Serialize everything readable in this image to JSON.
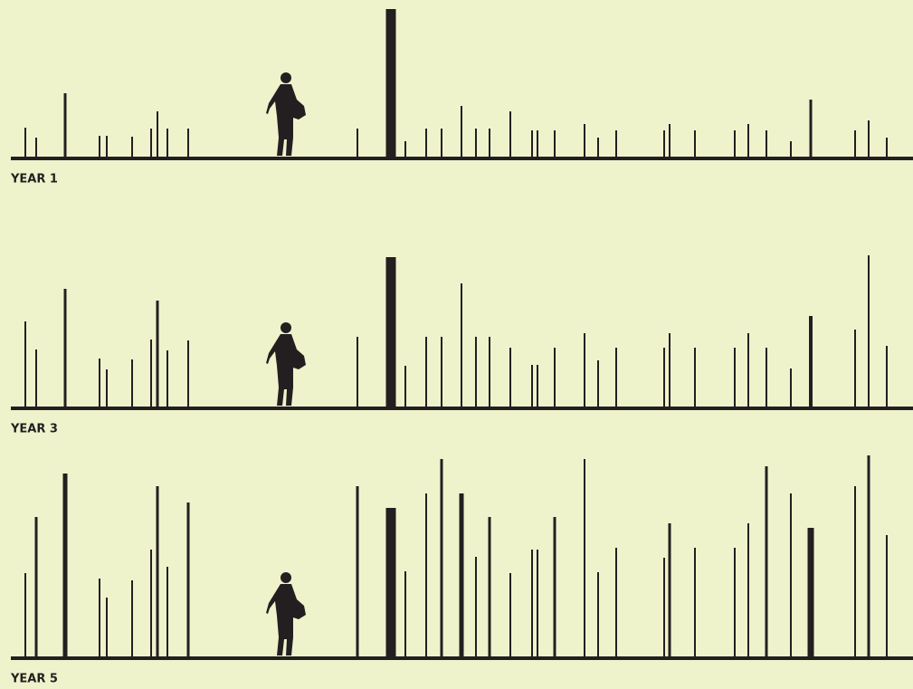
{
  "chart_data": [
    {
      "type": "stem",
      "title": "YEAR 1",
      "color": "#231f20",
      "xlim": [
        0,
        1009
      ],
      "x": [
        28,
        40,
        72,
        110,
        118,
        146,
        167,
        174,
        185,
        208,
        395,
        432,
        448,
        471,
        488,
        510,
        526,
        541,
        564,
        588,
        594,
        613,
        646,
        661,
        681,
        734,
        740,
        768,
        812,
        827,
        847,
        874,
        896,
        945,
        960,
        980
      ],
      "values": [
        33,
        22,
        71,
        24,
        24,
        23,
        32,
        51,
        32,
        32,
        32,
        164,
        18,
        32,
        32,
        57,
        32,
        32,
        51,
        30,
        30,
        30,
        37,
        22,
        30,
        30,
        37,
        30,
        30,
        37,
        30,
        18,
        64,
        30,
        41,
        22
      ],
      "widths": [
        2,
        2,
        3,
        2,
        2,
        2,
        2,
        2,
        2,
        2,
        2,
        11,
        2,
        2,
        2,
        2,
        2,
        2,
        2,
        2,
        2,
        2,
        2,
        2,
        2,
        2,
        2,
        2,
        2,
        2,
        2,
        2,
        3,
        2,
        2,
        2
      ]
    },
    {
      "type": "stem",
      "title": "YEAR 3",
      "color": "#231f20",
      "xlim": [
        0,
        1009
      ],
      "x": [
        28,
        40,
        72,
        110,
        118,
        146,
        167,
        174,
        185,
        208,
        395,
        432,
        448,
        471,
        488,
        510,
        526,
        541,
        564,
        588,
        594,
        613,
        646,
        661,
        681,
        734,
        740,
        768,
        812,
        827,
        847,
        874,
        896,
        945,
        960,
        980
      ],
      "values": [
        95,
        64,
        131,
        54,
        42,
        53,
        75,
        118,
        63,
        74,
        78,
        166,
        46,
        78,
        78,
        137,
        78,
        78,
        66,
        47,
        47,
        66,
        82,
        52,
        66,
        66,
        82,
        66,
        66,
        82,
        66,
        43,
        101,
        86,
        168,
        68
      ],
      "widths": [
        2,
        2,
        3,
        2,
        2,
        2,
        2,
        3,
        2,
        2,
        2,
        11,
        2,
        2,
        2,
        2,
        2,
        2,
        2,
        2,
        2,
        2,
        2,
        2,
        2,
        2,
        2,
        2,
        2,
        2,
        2,
        2,
        4,
        2,
        2,
        2
      ]
    },
    {
      "type": "stem",
      "title": "YEAR 5",
      "color": "#231f20",
      "xlim": [
        0,
        1009
      ],
      "x": [
        28,
        40,
        72,
        110,
        118,
        146,
        167,
        174,
        185,
        208,
        395,
        432,
        448,
        471,
        488,
        510,
        526,
        541,
        564,
        588,
        594,
        613,
        646,
        661,
        681,
        734,
        740,
        768,
        812,
        827,
        847,
        874,
        896,
        945,
        960,
        980
      ],
      "values": [
        93,
        155,
        203,
        87,
        66,
        85,
        119,
        189,
        100,
        171,
        189,
        165,
        95,
        181,
        219,
        181,
        111,
        155,
        93,
        119,
        119,
        155,
        219,
        94,
        121,
        110,
        148,
        121,
        121,
        148,
        211,
        181,
        143,
        189,
        223,
        135
      ],
      "widths": [
        2,
        3,
        5,
        2,
        2,
        2,
        2,
        3,
        2,
        3,
        3,
        11,
        2,
        2,
        3,
        5,
        2,
        3,
        2,
        2,
        2,
        3,
        2,
        2,
        2,
        2,
        3,
        2,
        2,
        2,
        3,
        2,
        7,
        2,
        3,
        2
      ]
    }
  ]
}
